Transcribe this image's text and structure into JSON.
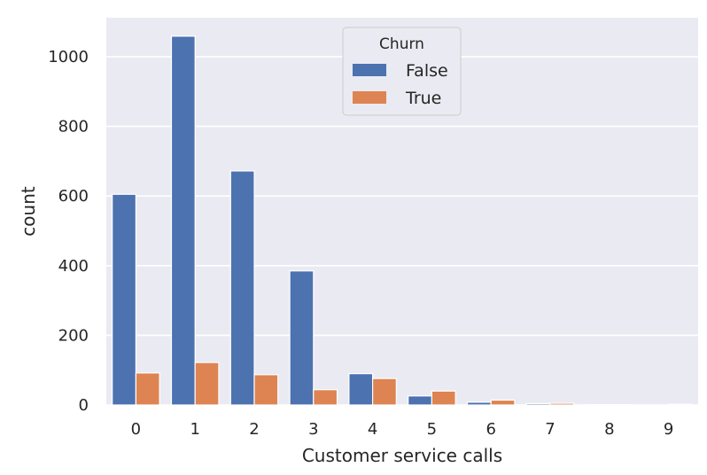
{
  "chart_data": {
    "type": "bar",
    "xlabel": "Customer service calls",
    "ylabel": "count",
    "categories": [
      "0",
      "1",
      "2",
      "3",
      "4",
      "5",
      "6",
      "7",
      "8",
      "9"
    ],
    "series": [
      {
        "name": "False",
        "color": "#4c72b0",
        "values": [
          605,
          1059,
          672,
          385,
          90,
          26,
          8,
          4,
          1,
          0
        ]
      },
      {
        "name": "True",
        "color": "#dd8452",
        "values": [
          92,
          122,
          87,
          44,
          76,
          40,
          14,
          5,
          1,
          2
        ]
      }
    ],
    "legend": {
      "title": "Churn",
      "position": "top-center"
    },
    "yticks": [
      0,
      200,
      400,
      600,
      800,
      1000
    ],
    "ylim": [
      0,
      1112
    ],
    "grid": true,
    "plot_background": "#eaeaf2",
    "grid_color": "#ffffff"
  }
}
